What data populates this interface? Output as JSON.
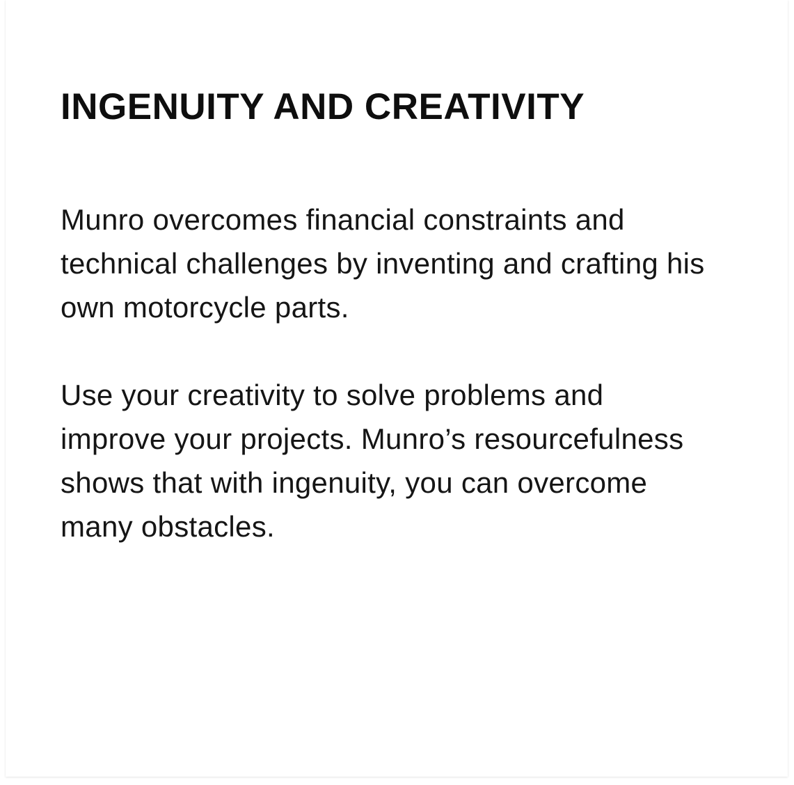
{
  "card": {
    "heading": "INGENUITY AND CREATIVITY",
    "paragraphs": [
      "Munro overcomes financial constraints and technical challenges by inventing and crafting his own motorcycle parts.",
      "Use your creativity to solve problems and improve your projects. Munro’s resourcefulness shows that with ingenuity, you can overcome many obstacles."
    ]
  },
  "colors": {
    "background": "#ffffff",
    "text": "#111111"
  }
}
